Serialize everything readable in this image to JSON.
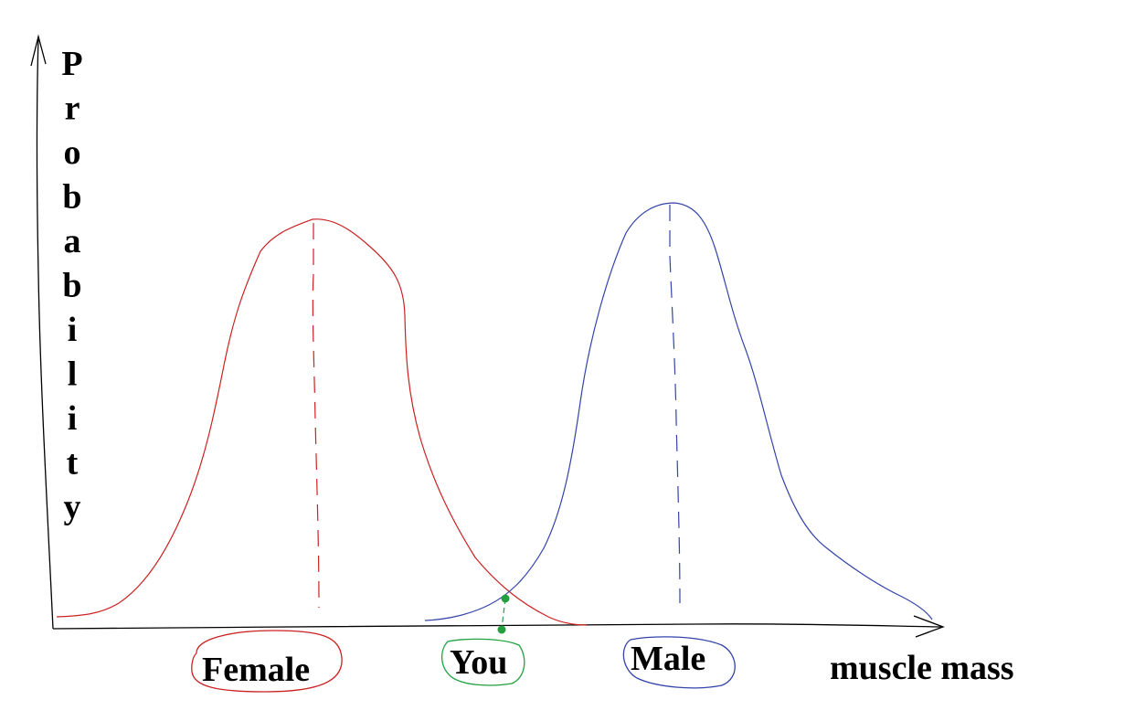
{
  "diagram": {
    "y_axis_label": "Probability",
    "x_axis_label": "muscle mass",
    "groups": [
      {
        "id": "female",
        "label": "Female",
        "color": "#cc2222"
      },
      {
        "id": "you",
        "label": "You",
        "color": "#22a040"
      },
      {
        "id": "male",
        "label": "Male",
        "color": "#3344aa"
      }
    ],
    "axis_color": "#000000"
  }
}
